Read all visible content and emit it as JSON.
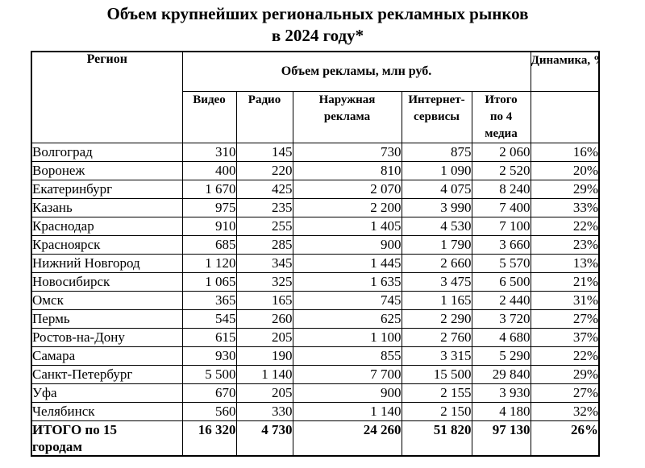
{
  "title": {
    "line1": "Объем крупнейших региональных рекламных рынков",
    "line2": "в 2024 году*"
  },
  "table": {
    "header": {
      "region": "Регион",
      "volume_group": "Объем рекламы, млн руб.",
      "dynamics": "Динамика, %",
      "columns": [
        "Видео",
        "Радио",
        "Наружная реклама",
        "Интернет-сервисы",
        "Итого по 4 медиа"
      ]
    },
    "rows": [
      {
        "region": "Волгоград",
        "video": "310",
        "radio": "145",
        "outdoor": "730",
        "internet": "875",
        "total": "2 060",
        "dynamics": "16%"
      },
      {
        "region": "Воронеж",
        "video": "400",
        "radio": "220",
        "outdoor": "810",
        "internet": "1 090",
        "total": "2 520",
        "dynamics": "20%"
      },
      {
        "region": "Екатеринбург",
        "video": "1 670",
        "radio": "425",
        "outdoor": "2 070",
        "internet": "4 075",
        "total": "8 240",
        "dynamics": "29%"
      },
      {
        "region": "Казань",
        "video": "975",
        "radio": "235",
        "outdoor": "2 200",
        "internet": "3 990",
        "total": "7 400",
        "dynamics": "33%"
      },
      {
        "region": "Краснодар",
        "video": "910",
        "radio": "255",
        "outdoor": "1 405",
        "internet": "4 530",
        "total": "7 100",
        "dynamics": "22%"
      },
      {
        "region": "Красноярск",
        "video": "685",
        "radio": "285",
        "outdoor": "900",
        "internet": "1 790",
        "total": "3 660",
        "dynamics": "23%"
      },
      {
        "region": "Нижний Новгород",
        "video": "1 120",
        "radio": "345",
        "outdoor": "1 445",
        "internet": "2 660",
        "total": "5 570",
        "dynamics": "13%"
      },
      {
        "region": "Новосибирск",
        "video": "1 065",
        "radio": "325",
        "outdoor": "1 635",
        "internet": "3 475",
        "total": "6 500",
        "dynamics": "21%"
      },
      {
        "region": "Омск",
        "video": "365",
        "radio": "165",
        "outdoor": "745",
        "internet": "1 165",
        "total": "2 440",
        "dynamics": "31%"
      },
      {
        "region": "Пермь",
        "video": "545",
        "radio": "260",
        "outdoor": "625",
        "internet": "2 290",
        "total": "3 720",
        "dynamics": "27%"
      },
      {
        "region": "Ростов-на-Дону",
        "video": "615",
        "radio": "205",
        "outdoor": "1 100",
        "internet": "2 760",
        "total": "4 680",
        "dynamics": "37%"
      },
      {
        "region": "Самара",
        "video": "930",
        "radio": "190",
        "outdoor": "855",
        "internet": "3 315",
        "total": "5 290",
        "dynamics": "22%"
      },
      {
        "region": "Санкт-Петербург",
        "video": "5 500",
        "radio": "1 140",
        "outdoor": "7 700",
        "internet": "15 500",
        "total": "29 840",
        "dynamics": "29%"
      },
      {
        "region": "Уфа",
        "video": "670",
        "radio": "205",
        "outdoor": "900",
        "internet": "2 155",
        "total": "3 930",
        "dynamics": "27%"
      },
      {
        "region": "Челябинск",
        "video": "560",
        "radio": "330",
        "outdoor": "1 140",
        "internet": "2 150",
        "total": "4 180",
        "dynamics": "32%"
      }
    ],
    "totals": {
      "region": "ИТОГО по 15 городам",
      "video": "16 320",
      "radio": "4 730",
      "outdoor": "24 260",
      "internet": "51 820",
      "total": "97 130",
      "dynamics": "26%"
    }
  },
  "colors": {
    "background": "#ffffff",
    "text": "#000000",
    "border": "#000000"
  }
}
